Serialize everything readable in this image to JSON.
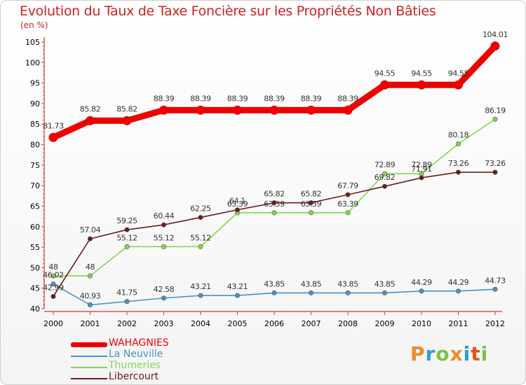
{
  "title": "Evolution du Taux de Taxe Foncière sur les Propriétés Non Bâties",
  "unit_label": "(en %)",
  "logo": {
    "letters": [
      "P",
      "r",
      "o",
      "x",
      "i",
      "t",
      "i"
    ],
    "colors": [
      "#f08a24",
      "#2a9fd6",
      "#7cc242",
      "#f08a24",
      "#2a9fd6",
      "#e84e1b",
      "#7cc242"
    ]
  },
  "chart_data": {
    "type": "line",
    "title": "Evolution du Taux de Taxe Foncière sur les Propriétés Non Bâties",
    "ylabel": "(en %)",
    "xlabel": "",
    "x": [
      "2000",
      "2001",
      "2002",
      "2003",
      "2004",
      "2005",
      "2006",
      "2007",
      "2008",
      "2009",
      "2010",
      "2011",
      "2012"
    ],
    "ylim": [
      40,
      105
    ],
    "yticks": [
      40,
      45,
      50,
      55,
      60,
      65,
      70,
      75,
      80,
      85,
      90,
      95,
      100,
      105
    ],
    "grid": false,
    "series": [
      {
        "name": "WAHAGNIES",
        "color": "#ee0000",
        "thick": true,
        "values": [
          81.73,
          85.82,
          85.82,
          88.39,
          88.39,
          88.39,
          88.39,
          88.39,
          88.39,
          94.55,
          94.55,
          94.55,
          104.01
        ],
        "labels": [
          "81.73",
          "85.82",
          "85.82",
          "88.39",
          "88.39",
          "88.39",
          "88.39",
          "88.39",
          "88.39",
          "94.55",
          "94.55",
          "94.55",
          "104.01"
        ]
      },
      {
        "name": "La Neuville",
        "color": "#4a90c4",
        "thick": false,
        "values": [
          46.02,
          40.93,
          41.75,
          42.58,
          43.21,
          43.21,
          43.85,
          43.85,
          43.85,
          43.85,
          44.29,
          44.29,
          44.73
        ],
        "labels": [
          "46.02",
          "40.93",
          "41.75",
          "42.58",
          "43.21",
          "43.21",
          "43.85",
          "43.85",
          "43.85",
          "43.85",
          "44.29",
          "44.29",
          "44.73"
        ]
      },
      {
        "name": "Thumeries",
        "color": "#7fd94a",
        "thick": false,
        "values": [
          48,
          48,
          55.12,
          55.12,
          55.12,
          63.39,
          63.39,
          63.39,
          63.39,
          72.89,
          72.89,
          80.18,
          86.19
        ],
        "labels": [
          "48",
          "48",
          "55.12",
          "55.12",
          "55.12",
          "63.39",
          "63.39",
          "63.39",
          "63.39",
          "72.89",
          "72.89",
          "80.18",
          "86.19"
        ]
      },
      {
        "name": "Libercourt",
        "color": "#6b1a1a",
        "thick": false,
        "values": [
          42.99,
          57.04,
          59.25,
          60.44,
          62.25,
          64.1,
          65.82,
          65.82,
          67.79,
          69.82,
          71.91,
          73.26,
          73.26
        ],
        "labels": [
          "42.99",
          "57.04",
          "59.25",
          "60.44",
          "62.25",
          "64.1",
          "65.82",
          "65.82",
          "67.79",
          "69.82",
          "71.91",
          "73.26",
          "73.26"
        ]
      }
    ],
    "legend": [
      "WAHAGNIES",
      "La Neuville",
      "Thumeries",
      "Libercourt"
    ],
    "legend_position": "bottom-left"
  }
}
